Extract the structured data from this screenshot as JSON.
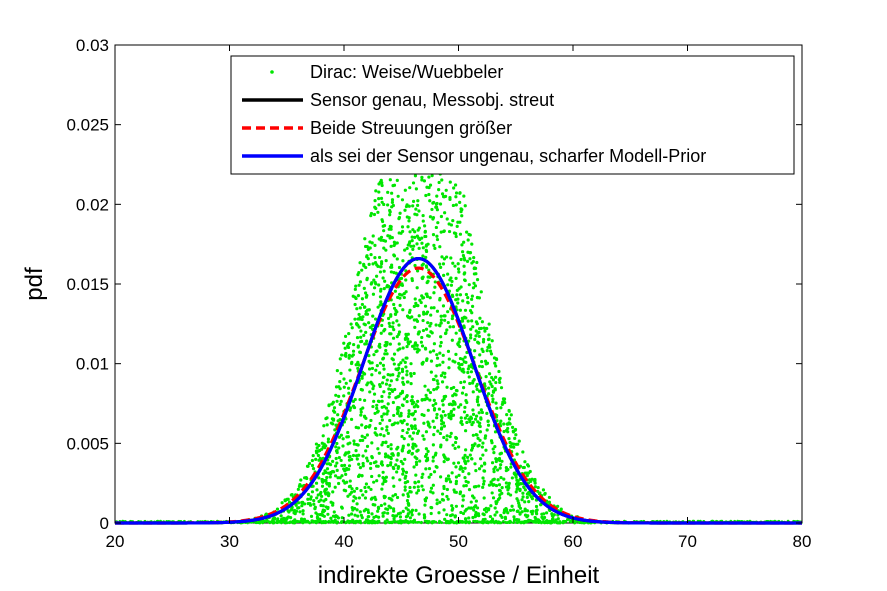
{
  "chart_data": {
    "type": "scatter",
    "title": "",
    "xlabel": "indirekte Groesse / Einheit",
    "ylabel": "pdf",
    "xlim": [
      20,
      80
    ],
    "ylim": [
      0,
      0.03
    ],
    "xticks": [
      "20",
      "30",
      "40",
      "50",
      "60",
      "70",
      "80"
    ],
    "yticks": [
      "0",
      "0.005",
      "0.01",
      "0.015",
      "0.02",
      "0.025",
      "0.03"
    ],
    "grid": false,
    "legend_position": "top-right",
    "series": [
      {
        "name": "Dirac: Weise/Wuebbeler",
        "kind": "scatter",
        "color": "#00e600",
        "marker": "dot",
        "approx_center": 46.5,
        "approx_sigma": 5.8,
        "approx_peak": 0.0292
      },
      {
        "name": "Sensor genau, Messobj. streut",
        "kind": "line",
        "color": "#000000",
        "style": "solid",
        "mu": 46.5,
        "sigma": 4.8,
        "peak": 0.0166
      },
      {
        "name": "Beide Streuungen größer",
        "kind": "line",
        "color": "#ff0000",
        "style": "dashed",
        "mu": 46.5,
        "sigma": 5.0,
        "peak": 0.016
      },
      {
        "name": "als sei der Sensor ungenau, scharfer Modell-Prior",
        "kind": "line",
        "color": "#0000ff",
        "style": "solid",
        "mu": 46.5,
        "sigma": 4.8,
        "peak": 0.0166
      }
    ]
  }
}
